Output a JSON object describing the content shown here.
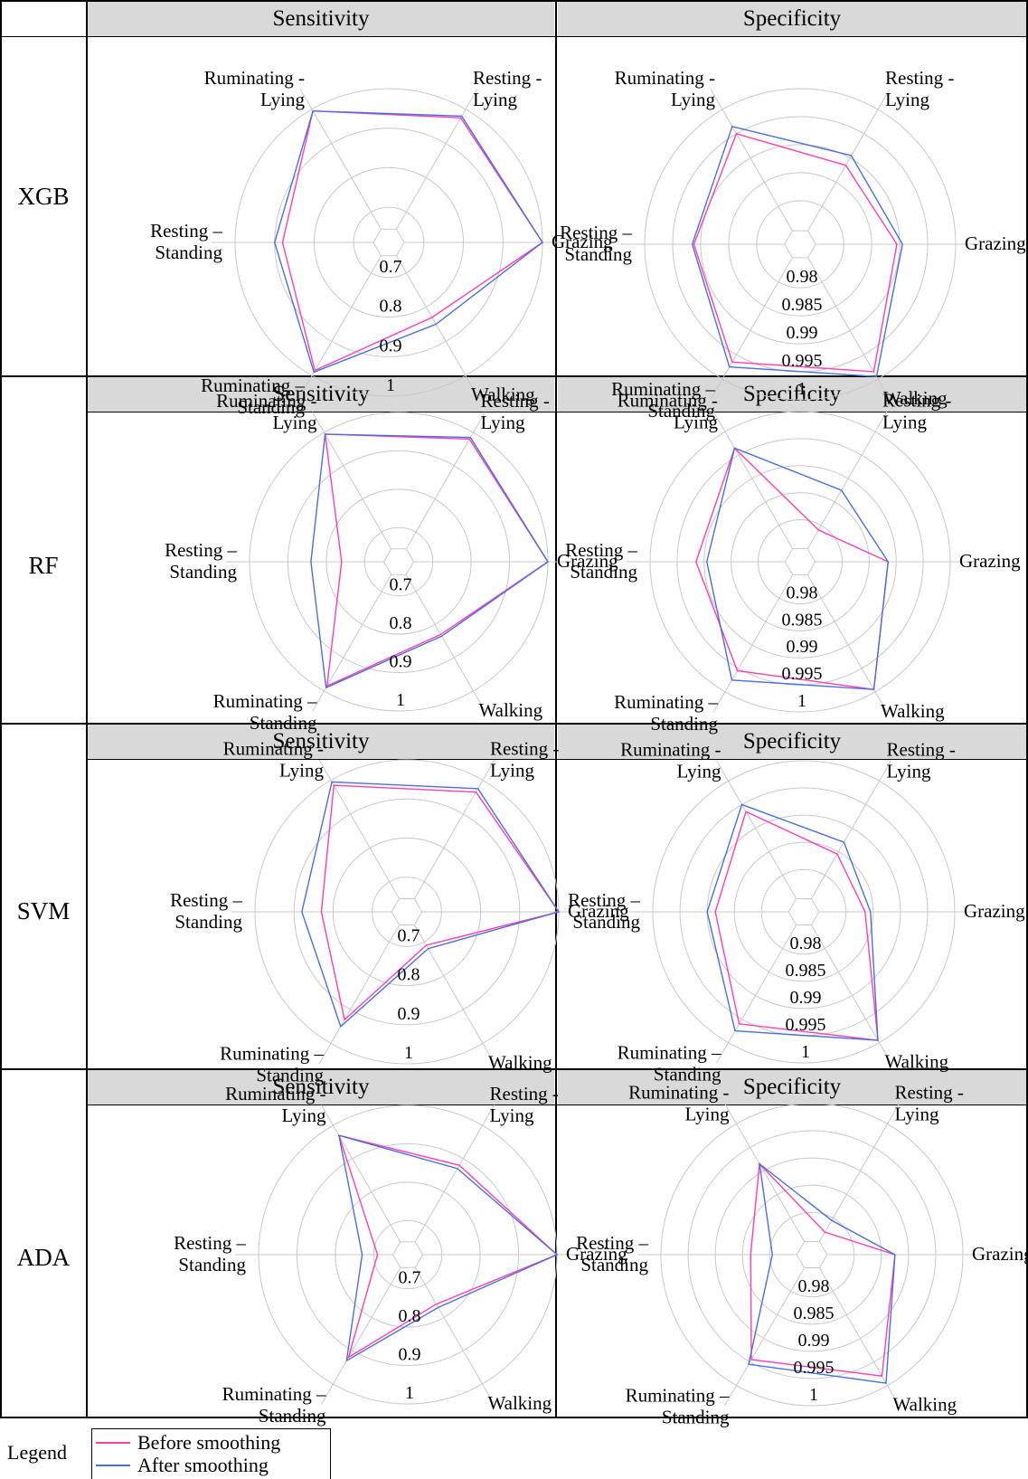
{
  "legend": {
    "title": "Legend",
    "items": [
      {
        "label": "Before smoothing",
        "color": "#ff3fb0"
      },
      {
        "label": "After smoothing",
        "color": "#4a6fe0"
      }
    ]
  },
  "colors": {
    "grid": "#c8c8c8",
    "header_bg": "#d9d9d9"
  },
  "chart_data": [
    {
      "type": "radar",
      "model": "XGB",
      "metric": "Sensitivity",
      "axes": [
        "Grazing",
        "Resting - Lying",
        "Ruminating - Lying",
        "Resting – Standing",
        "Ruminating – Standing",
        "Walking"
      ],
      "rlim": [
        0.65,
        1
      ],
      "ticks": [
        "0.7",
        "0.8",
        "0.9",
        "1"
      ],
      "series": [
        {
          "name": "Before smoothing",
          "values": [
            1.0,
            0.975,
            0.995,
            0.88,
            0.985,
            0.83
          ]
        },
        {
          "name": "After smoothing",
          "values": [
            1.0,
            0.98,
            0.995,
            0.9,
            0.99,
            0.85
          ]
        }
      ]
    },
    {
      "type": "radar",
      "model": "XGB",
      "metric": "Specificity",
      "axes": [
        "Grazing",
        "Resting - Lying",
        "Ruminating - Lying",
        "Resting – Standing",
        "Ruminating – Standing",
        "Walking"
      ],
      "rlim": [
        0.975,
        1
      ],
      "ticks": [
        "0.98",
        "0.985",
        "0.99",
        "0.995",
        "1"
      ],
      "series": [
        {
          "name": "Before smoothing",
          "values": [
            0.9895,
            0.9885,
            0.995,
            0.9912,
            0.9965,
            0.9985
          ]
        },
        {
          "name": "After smoothing",
          "values": [
            0.9905,
            0.9905,
            0.9965,
            0.9915,
            0.9975,
            0.9995
          ]
        }
      ]
    },
    {
      "type": "radar",
      "model": "RF",
      "metric": "Sensitivity",
      "axes": [
        "Grazing",
        "Resting - Lying",
        "Ruminating - Lying",
        "Resting – Standing",
        "Ruminating – Standing",
        "Walking"
      ],
      "rlim": [
        0.65,
        1
      ],
      "ticks": [
        "0.7",
        "0.8",
        "0.9",
        "1"
      ],
      "series": [
        {
          "name": "Before smoothing",
          "values": [
            1.0,
            0.98,
            0.995,
            0.76,
            0.985,
            0.83
          ]
        },
        {
          "name": "After smoothing",
          "values": [
            1.0,
            0.985,
            0.995,
            0.84,
            0.99,
            0.835
          ]
        }
      ]
    },
    {
      "type": "radar",
      "model": "RF",
      "metric": "Specificity",
      "axes": [
        "Grazing",
        "Resting - Lying",
        "Ruminating - Lying",
        "Resting – Standing",
        "Ruminating – Standing",
        "Walking"
      ],
      "rlim": [
        0.975,
        1
      ],
      "ticks": [
        "0.98",
        "0.985",
        "0.99",
        "0.995",
        "1"
      ],
      "series": [
        {
          "name": "Before smoothing",
          "values": [
            0.9885,
            0.979,
            0.9965,
            0.9915,
            0.9955,
            0.9995
          ]
        },
        {
          "name": "After smoothing",
          "values": [
            0.9885,
            0.9875,
            0.9965,
            0.9895,
            0.9975,
            0.9995
          ]
        }
      ]
    },
    {
      "type": "radar",
      "model": "SVM",
      "metric": "Sensitivity",
      "axes": [
        "Grazing",
        "Resting - Lying",
        "Ruminating - Lying",
        "Resting – Standing",
        "Ruminating – Standing",
        "Walking"
      ],
      "rlim": [
        0.65,
        1
      ],
      "ticks": [
        "0.7",
        "0.8",
        "0.9",
        "1"
      ],
      "series": [
        {
          "name": "Before smoothing",
          "values": [
            1.0,
            0.965,
            0.985,
            0.83,
            0.93,
            0.71
          ]
        },
        {
          "name": "After smoothing",
          "values": [
            1.0,
            0.975,
            0.995,
            0.88,
            0.95,
            0.72
          ]
        }
      ]
    },
    {
      "type": "radar",
      "model": "SVM",
      "metric": "Specificity",
      "axes": [
        "Grazing",
        "Resting - Lying",
        "Ruminating - Lying",
        "Resting – Standing",
        "Ruminating – Standing",
        "Walking"
      ],
      "rlim": [
        0.975,
        1
      ],
      "ticks": [
        "0.98",
        "0.985",
        "0.99",
        "0.995",
        "1"
      ],
      "series": [
        {
          "name": "Before smoothing",
          "values": [
            0.9835,
            0.9845,
            0.9935,
            0.9885,
            0.996,
            0.9995
          ]
        },
        {
          "name": "After smoothing",
          "values": [
            0.9845,
            0.987,
            0.995,
            0.99,
            0.9975,
            0.9995
          ]
        }
      ]
    },
    {
      "type": "radar",
      "model": "ADA",
      "metric": "Sensitivity",
      "axes": [
        "Grazing",
        "Resting - Lying",
        "Ruminating - Lying",
        "Resting – Standing",
        "Ruminating – Standing",
        "Walking"
      ],
      "rlim": [
        0.65,
        1
      ],
      "ticks": [
        "0.7",
        "0.8",
        "0.9",
        "1"
      ],
      "series": [
        {
          "name": "Before smoothing",
          "values": [
            1.0,
            0.88,
            0.97,
            0.69,
            0.92,
            0.76
          ]
        },
        {
          "name": "After smoothing",
          "values": [
            1.0,
            0.87,
            0.97,
            0.73,
            0.93,
            0.77
          ]
        }
      ]
    },
    {
      "type": "radar",
      "model": "ADA",
      "metric": "Specificity",
      "axes": [
        "Grazing",
        "Resting - Lying",
        "Ruminating - Lying",
        "Resting – Standing",
        "Ruminating – Standing",
        "Walking"
      ],
      "rlim": [
        0.975,
        1
      ],
      "ticks": [
        "0.98",
        "0.985",
        "0.99",
        "0.995",
        "1"
      ],
      "series": [
        {
          "name": "Before smoothing",
          "values": [
            0.9875,
            0.977,
            0.9915,
            0.9835,
            0.9945,
            0.998
          ]
        },
        {
          "name": "After smoothing",
          "values": [
            0.9875,
            0.9795,
            0.9915,
            0.9795,
            0.9955,
            0.9995
          ]
        }
      ]
    }
  ]
}
